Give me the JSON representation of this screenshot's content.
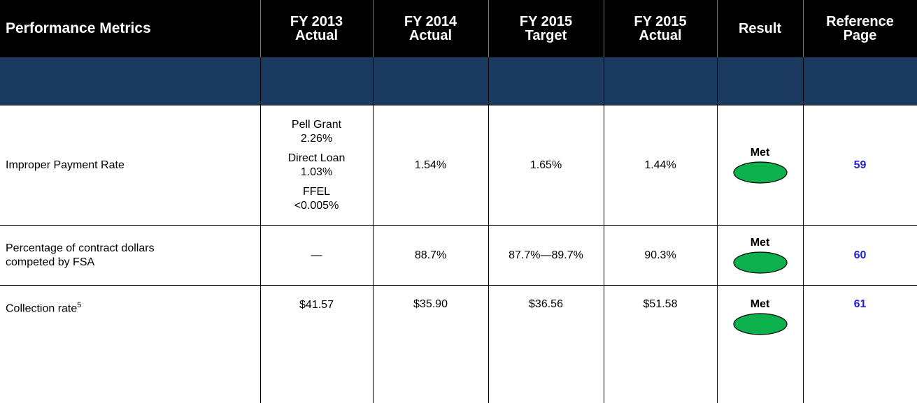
{
  "table": {
    "header": [
      [
        "Performance Metrics"
      ],
      [
        "FY 2013",
        "Actual"
      ],
      [
        "FY 2014",
        "Actual"
      ],
      [
        "FY 2015",
        "Target"
      ],
      [
        "FY 2015",
        "Actual"
      ],
      [
        "Result"
      ],
      [
        "Reference",
        "Page"
      ]
    ],
    "rows": [
      {
        "metric": [
          "Improper Payment Rate"
        ],
        "fy2013": [
          [
            "Pell Grant",
            "2.26%"
          ],
          [
            "Direct Loan",
            "1.03%"
          ],
          [
            "FFEL",
            "<0.005%"
          ]
        ],
        "fy2014": "1.54%",
        "fy2015_target": "1.65%",
        "fy2015_actual": "1.44%",
        "result": "Met",
        "reference": "59"
      },
      {
        "metric": [
          "Percentage of contract dollars",
          "competed by FSA"
        ],
        "fy2013": [
          [
            "—"
          ]
        ],
        "fy2014": "88.7%",
        "fy2015_target": "87.7%—89.7%",
        "fy2015_actual": "90.3%",
        "result": "Met",
        "reference": "60"
      },
      {
        "metric": [
          "Collection rate"
        ],
        "metric_footnote": "5",
        "fy2013": [
          [
            "$41.57"
          ]
        ],
        "fy2014": "$35.90",
        "fy2015_target": "$36.56",
        "fy2015_actual": "$51.58",
        "result": "Met",
        "reference": "61"
      }
    ]
  }
}
